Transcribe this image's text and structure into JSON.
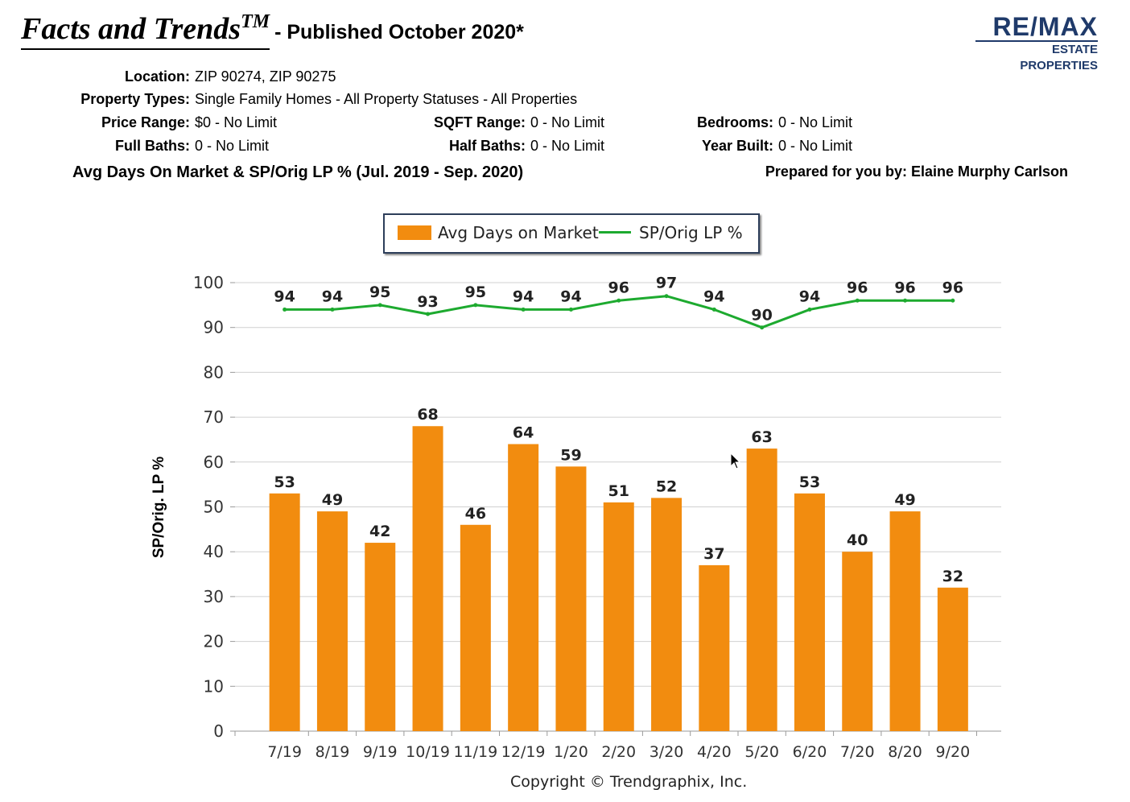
{
  "header": {
    "brand_title": "Facts and Trends",
    "brand_tm": "TM",
    "published": "- Published October 2020*",
    "logo_main": "RE/MAX",
    "logo_sub": "ESTATE PROPERTIES"
  },
  "filters": {
    "location_label": "Location:",
    "location_value": "ZIP 90274, ZIP 90275",
    "property_types_label": "Property Types:",
    "property_types_value": "Single Family Homes - All Property Statuses - All Properties",
    "price_range_label": "Price Range:",
    "price_range_value": "$0 - No Limit",
    "sqft_range_label": "SQFT Range:",
    "sqft_range_value": "0 - No Limit",
    "bedrooms_label": "Bedrooms:",
    "bedrooms_value": "0 - No Limit",
    "full_baths_label": "Full Baths:",
    "full_baths_value": "0 - No Limit",
    "half_baths_label": "Half Baths:",
    "half_baths_value": "0 - No Limit",
    "year_built_label": "Year Built:",
    "year_built_value": "0 - No Limit"
  },
  "report": {
    "subtitle": "Avg Days On Market & SP/Orig LP % (Jul. 2019 - Sep. 2020)",
    "prepared_by": "Prepared for you by: Elaine Murphy Carlson"
  },
  "footer": {
    "copyright": "Copyright © Trendgraphix, Inc."
  },
  "chart_data": {
    "type": "bar",
    "categories": [
      "7/19",
      "8/19",
      "9/19",
      "10/19",
      "11/19",
      "12/19",
      "1/20",
      "2/20",
      "3/20",
      "4/20",
      "5/20",
      "6/20",
      "7/20",
      "8/20",
      "9/20"
    ],
    "series": [
      {
        "name": "Avg Days on Market",
        "type": "bar",
        "color": "#f28c0f",
        "values": [
          53,
          49,
          42,
          68,
          46,
          64,
          59,
          51,
          52,
          37,
          63,
          53,
          40,
          49,
          32
        ]
      },
      {
        "name": "SP/Orig LP %",
        "type": "line",
        "color": "#1daa2f",
        "values": [
          94,
          94,
          95,
          93,
          95,
          94,
          94,
          96,
          97,
          94,
          90,
          94,
          96,
          96,
          96
        ]
      }
    ],
    "ylabel": "SP/Orig. LP %",
    "ylim": [
      0,
      100
    ],
    "yticks": [
      0,
      10,
      20,
      30,
      40,
      50,
      60,
      70,
      80,
      90,
      100
    ],
    "grid": true,
    "legend": "top-center",
    "data_labels": true
  }
}
